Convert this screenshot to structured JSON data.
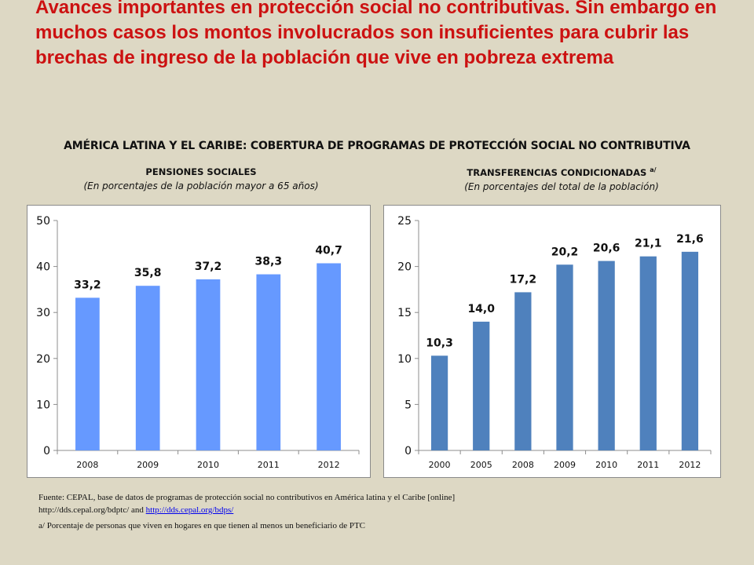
{
  "slide": {
    "title": "Avances importantes en protección social no contributivas. Sin embargo en muchos casos los montos involucrados son insuficientes para cubrir las brechas de ingreso de la población que vive en pobreza extrema"
  },
  "main_title": "AMÉRICA LATINA Y EL CARIBE: COBERTURA DE PROGRAMAS DE PROTECCIÓN SOCIAL NO CONTRIBUTIVA",
  "chart_data": [
    {
      "type": "bar",
      "title": "PENSIONES SOCIALES",
      "subtitle": "(En porcentajes de la población mayor a 65 años)",
      "categories": [
        "2008",
        "2009",
        "2010",
        "2011",
        "2012"
      ],
      "values": [
        33.2,
        35.8,
        37.2,
        38.3,
        40.7
      ],
      "value_labels": [
        "33,2",
        "35,8",
        "37,2",
        "38,3",
        "40,7"
      ],
      "yticks": [
        "0",
        "10",
        "20",
        "30",
        "40",
        "50"
      ],
      "ylim": [
        0,
        50
      ],
      "ystep": 10,
      "color": "#6699ff",
      "grid": false
    },
    {
      "type": "bar",
      "title": "TRANSFERENCIAS CONDICIONADAS",
      "title_sup": "a/",
      "subtitle": "(En porcentajes del total de la población)",
      "categories": [
        "2000",
        "2005",
        "2008",
        "2009",
        "2010",
        "2011",
        "2012"
      ],
      "values": [
        10.3,
        14.0,
        17.2,
        20.2,
        20.6,
        21.1,
        21.6
      ],
      "value_labels": [
        "10,3",
        "14,0",
        "17,2",
        "20,2",
        "20,6",
        "21,1",
        "21,6"
      ],
      "yticks": [
        "0",
        "5",
        "10",
        "15",
        "20",
        "25"
      ],
      "ylim": [
        0,
        25
      ],
      "ystep": 5,
      "color": "#4f81bd",
      "grid": false
    }
  ],
  "footnotes": {
    "source_line1": "Fuente: CEPAL, base de datos de programas de protección social no contributivos en América latina y el Caribe [online]",
    "source_line2_prefix": "http://dds.cepal.org/bdptc/ and ",
    "source_link": "http://dds.cepal.org/bdps/",
    "note": "a/ Porcentaje de personas que viven en hogares en que tienen al menos un beneficiario de PTC"
  }
}
